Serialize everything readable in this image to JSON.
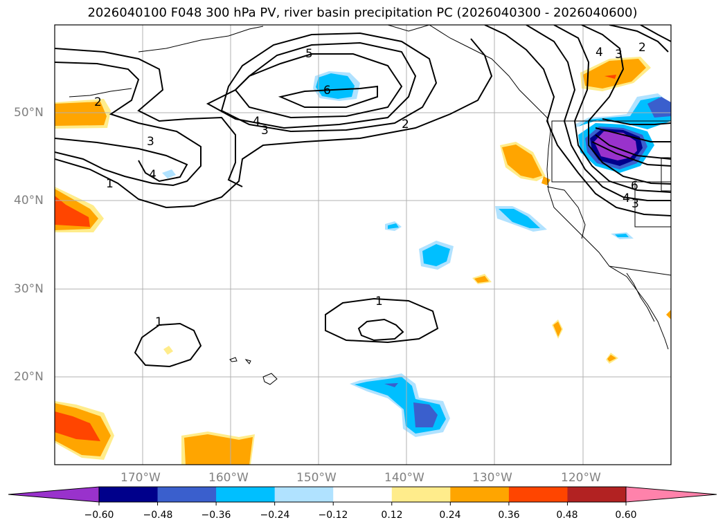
{
  "title": "2026040100 F048 300 hPa PV, river basin precipitation PC (2026040300 - 2026040600)",
  "map": {
    "lat_labels": [
      "50°N",
      "40°N",
      "30°N",
      "20°N"
    ],
    "lon_labels": [
      "170°W",
      "160°W",
      "150°W",
      "140°W",
      "130°W",
      "120°W"
    ],
    "lat_ticks": [
      50,
      40,
      30,
      20
    ],
    "lon_ticks": [
      -170,
      -160,
      -150,
      -140,
      -130,
      -120
    ],
    "extent": {
      "lon": [
        -180,
        -110
      ],
      "lat": [
        10,
        60
      ]
    },
    "pv_contour_labels": [
      "5",
      "6",
      "2",
      "4",
      "3",
      "4",
      "3",
      "2",
      "1",
      "1",
      "1",
      "4",
      "3",
      "2",
      "6",
      "4",
      "3"
    ]
  },
  "colorbar": {
    "labels": [
      "−0.60",
      "−0.48",
      "−0.36",
      "−0.24",
      "−0.12",
      "0.12",
      "0.24",
      "0.36",
      "0.48",
      "0.60"
    ],
    "bounds": [
      -0.6,
      -0.48,
      -0.36,
      -0.24,
      -0.12,
      0.12,
      0.24,
      0.36,
      0.48,
      0.6
    ],
    "colors": [
      "#9932CC",
      "#00008B",
      "#3A5FCD",
      "#00BFFF",
      "#B0E2FF",
      "#FFFFFF",
      "#FFEC8B",
      "#FFA500",
      "#FF4500",
      "#B22222",
      "#FF82AB"
    ],
    "extend": "both"
  }
}
